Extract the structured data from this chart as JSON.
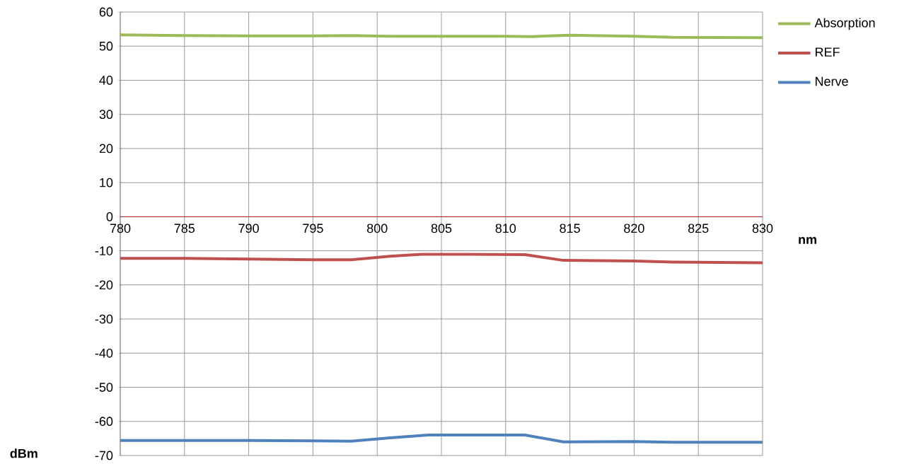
{
  "chart_data": {
    "type": "line",
    "xlabel": "nm",
    "ylabel": "dBm",
    "xlim": [
      780,
      830
    ],
    "xticks": [
      780,
      785,
      790,
      795,
      800,
      805,
      810,
      815,
      820,
      825,
      830
    ],
    "ylim": [
      -70,
      60
    ],
    "yticks": [
      -70,
      -60,
      -50,
      -40,
      -30,
      -20,
      -10,
      0,
      10,
      20,
      30,
      40,
      50,
      60
    ],
    "grid": true,
    "legend": "right",
    "marker": "none",
    "line_style": "solid",
    "series": [
      {
        "name": "Absorption",
        "color": "#9bbb59",
        "x": [
          780,
          785,
          790,
          795,
          798,
          801,
          805,
          810,
          812,
          815,
          820,
          823,
          830
        ],
        "values": [
          53.3,
          53.1,
          53.0,
          53.0,
          53.1,
          52.9,
          52.9,
          52.9,
          52.8,
          53.2,
          52.9,
          52.6,
          52.5
        ]
      },
      {
        "name": "REF",
        "color": "#c0504d",
        "x": [
          780,
          785,
          790,
          795,
          798,
          801,
          803.5,
          807,
          811.5,
          814.5,
          820,
          823,
          830
        ],
        "values": [
          -12.2,
          -12.2,
          -12.4,
          -12.6,
          -12.6,
          -11.6,
          -11.0,
          -11.0,
          -11.1,
          -12.8,
          -13.0,
          -13.3,
          -13.5
        ]
      },
      {
        "name": "Nerve",
        "color": "#4f81bd",
        "x": [
          780,
          785,
          790,
          795,
          798,
          801,
          804,
          808,
          811.5,
          814.5,
          820,
          823,
          830
        ],
        "values": [
          -65.6,
          -65.6,
          -65.6,
          -65.7,
          -65.8,
          -64.8,
          -64.0,
          -64.0,
          -64.0,
          -66.0,
          -65.9,
          -66.1,
          -66.1
        ]
      }
    ]
  }
}
